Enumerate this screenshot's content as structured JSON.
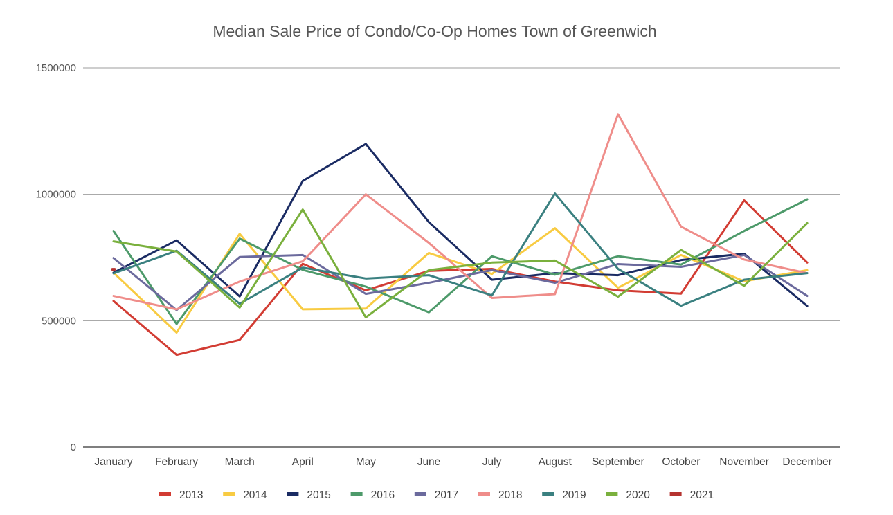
{
  "chart_data": {
    "type": "line",
    "title": "Median Sale Price of Condo/Co-Op Homes Town of Greenwich",
    "xlabel": "",
    "ylabel": "",
    "ylim": [
      0,
      1500000
    ],
    "y_ticks": [
      "0",
      "500000",
      "1000000",
      "1500000"
    ],
    "grid": true,
    "legend_position": "bottom",
    "categories": [
      "January",
      "February",
      "March",
      "April",
      "May",
      "June",
      "July",
      "August",
      "September",
      "October",
      "November",
      "December"
    ],
    "series": [
      {
        "name": "2013",
        "color": "#d23c33",
        "values": [
          578000,
          365000,
          424000,
          725000,
          620000,
          697000,
          705000,
          655000,
          620000,
          607000,
          976000,
          730000
        ]
      },
      {
        "name": "2014",
        "color": "#f8cb42",
        "values": [
          690000,
          453000,
          844000,
          545000,
          548000,
          768000,
          685000,
          866000,
          630000,
          760000,
          656000,
          700000
        ]
      },
      {
        "name": "2015",
        "color": "#1a2b63",
        "values": [
          690000,
          818000,
          596000,
          1053000,
          1199000,
          890000,
          662000,
          688000,
          680000,
          740000,
          765000,
          558000
        ]
      },
      {
        "name": "2016",
        "color": "#4d9a6a",
        "values": [
          855000,
          487000,
          825000,
          701000,
          635000,
          533000,
          755000,
          682000,
          755000,
          722000,
          855000,
          980000
        ]
      },
      {
        "name": "2017",
        "color": "#6b6a9d",
        "values": [
          748000,
          542000,
          752000,
          760000,
          606000,
          650000,
          700000,
          650000,
          724000,
          713000,
          760000,
          598000
        ]
      },
      {
        "name": "2018",
        "color": "#ef8d8a",
        "values": [
          598000,
          545000,
          655000,
          735000,
          1000000,
          808000,
          590000,
          605000,
          1317000,
          872000,
          742000,
          688000
        ]
      },
      {
        "name": "2019",
        "color": "#3a8080",
        "values": [
          687000,
          777000,
          567000,
          710000,
          667000,
          680000,
          600000,
          1003000,
          705000,
          559000,
          662000,
          688000
        ]
      },
      {
        "name": "2020",
        "color": "#7ab03d",
        "values": [
          814000,
          774000,
          552000,
          940000,
          513000,
          700000,
          730000,
          738000,
          595000,
          780000,
          638000,
          886000
        ]
      },
      {
        "name": "2021",
        "color": "#b53330",
        "values": [
          703000,
          null,
          null,
          null,
          null,
          null,
          null,
          null,
          null,
          null,
          null,
          null
        ]
      }
    ]
  }
}
